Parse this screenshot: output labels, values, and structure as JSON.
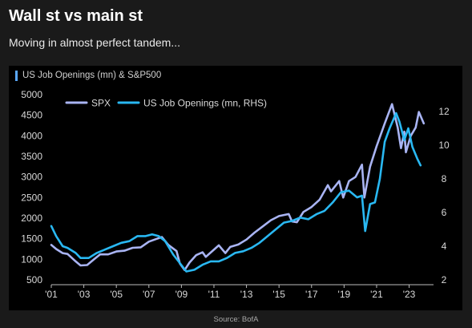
{
  "header": {
    "title": "Wall st vs main st",
    "subtitle": "Moving in almost perfect tandem..."
  },
  "source": "Source: BofA",
  "colors": {
    "spx": "#a9b4f3",
    "job_openings": "#29b8f2",
    "accent_bar": "#5aa8ff"
  },
  "chart_data": {
    "type": "line",
    "title": "US Job Openings (mn) & S&P500",
    "legend": {
      "placement": "top-left",
      "entries": [
        "SPX",
        "US Job Openings (mn, RHS)"
      ]
    },
    "x_ticks": [
      "'01",
      "'03",
      "'05",
      "'07",
      "'09",
      "'11",
      "'13",
      "'15",
      "'17",
      "'19",
      "'21",
      "'23"
    ],
    "x_tick_values": [
      2001,
      2003,
      2005,
      2007,
      2009,
      2011,
      2013,
      2015,
      2017,
      2019,
      2021,
      2023
    ],
    "xlim": [
      2001,
      2024.5
    ],
    "ylim_left": [
      500,
      5000
    ],
    "y_ticks_left": [
      500,
      1000,
      1500,
      2000,
      2500,
      3000,
      3500,
      4000,
      4500,
      5000
    ],
    "ylim_right": [
      2,
      13
    ],
    "y_ticks_right": [
      2,
      4,
      6,
      8,
      10,
      12
    ],
    "grid": false,
    "series": [
      {
        "name": "SPX",
        "axis": "left",
        "points": [
          [
            2001.0,
            1350
          ],
          [
            2001.3,
            1250
          ],
          [
            2001.7,
            1150
          ],
          [
            2002.0,
            1130
          ],
          [
            2002.5,
            950
          ],
          [
            2002.8,
            850
          ],
          [
            2003.2,
            860
          ],
          [
            2003.6,
            990
          ],
          [
            2004.0,
            1120
          ],
          [
            2004.5,
            1120
          ],
          [
            2005.0,
            1190
          ],
          [
            2005.5,
            1210
          ],
          [
            2006.0,
            1280
          ],
          [
            2006.5,
            1290
          ],
          [
            2007.0,
            1430
          ],
          [
            2007.5,
            1500
          ],
          [
            2007.8,
            1540
          ],
          [
            2008.2,
            1350
          ],
          [
            2008.7,
            1200
          ],
          [
            2008.9,
            900
          ],
          [
            2009.2,
            740
          ],
          [
            2009.5,
            920
          ],
          [
            2009.9,
            1100
          ],
          [
            2010.3,
            1170
          ],
          [
            2010.5,
            1060
          ],
          [
            2010.9,
            1200
          ],
          [
            2011.3,
            1340
          ],
          [
            2011.7,
            1150
          ],
          [
            2012.0,
            1300
          ],
          [
            2012.5,
            1360
          ],
          [
            2013.0,
            1480
          ],
          [
            2013.5,
            1650
          ],
          [
            2014.0,
            1800
          ],
          [
            2014.5,
            1950
          ],
          [
            2015.0,
            2050
          ],
          [
            2015.6,
            2100
          ],
          [
            2015.8,
            1920
          ],
          [
            2016.1,
            1900
          ],
          [
            2016.5,
            2150
          ],
          [
            2017.0,
            2270
          ],
          [
            2017.5,
            2450
          ],
          [
            2018.0,
            2800
          ],
          [
            2018.2,
            2650
          ],
          [
            2018.7,
            2900
          ],
          [
            2018.95,
            2500
          ],
          [
            2019.3,
            2900
          ],
          [
            2019.7,
            3000
          ],
          [
            2020.1,
            3300
          ],
          [
            2020.25,
            2500
          ],
          [
            2020.6,
            3250
          ],
          [
            2021.0,
            3750
          ],
          [
            2021.5,
            4300
          ],
          [
            2021.95,
            4770
          ],
          [
            2022.3,
            4200
          ],
          [
            2022.5,
            3700
          ],
          [
            2022.7,
            4100
          ],
          [
            2022.8,
            3600
          ],
          [
            2023.1,
            4000
          ],
          [
            2023.4,
            4200
          ],
          [
            2023.6,
            4580
          ],
          [
            2023.9,
            4300
          ]
        ]
      },
      {
        "name": "US Job Openings (mn, RHS)",
        "axis": "right",
        "points": [
          [
            2001.0,
            5.2
          ],
          [
            2001.3,
            4.6
          ],
          [
            2001.7,
            4.0
          ],
          [
            2002.0,
            3.9
          ],
          [
            2002.5,
            3.6
          ],
          [
            2002.8,
            3.3
          ],
          [
            2003.3,
            3.3
          ],
          [
            2003.8,
            3.6
          ],
          [
            2004.3,
            3.8
          ],
          [
            2004.8,
            4.0
          ],
          [
            2005.3,
            4.2
          ],
          [
            2005.8,
            4.3
          ],
          [
            2006.3,
            4.6
          ],
          [
            2006.8,
            4.6
          ],
          [
            2007.2,
            4.7
          ],
          [
            2007.6,
            4.6
          ],
          [
            2008.0,
            4.3
          ],
          [
            2008.5,
            3.5
          ],
          [
            2008.9,
            3.0
          ],
          [
            2009.3,
            2.5
          ],
          [
            2009.8,
            2.6
          ],
          [
            2010.3,
            2.9
          ],
          [
            2010.8,
            3.1
          ],
          [
            2011.3,
            3.1
          ],
          [
            2011.8,
            3.3
          ],
          [
            2012.3,
            3.6
          ],
          [
            2012.8,
            3.7
          ],
          [
            2013.3,
            3.9
          ],
          [
            2013.8,
            4.2
          ],
          [
            2014.3,
            4.6
          ],
          [
            2014.8,
            5.0
          ],
          [
            2015.3,
            5.4
          ],
          [
            2015.8,
            5.5
          ],
          [
            2016.3,
            5.7
          ],
          [
            2016.8,
            5.6
          ],
          [
            2017.3,
            5.9
          ],
          [
            2017.8,
            6.1
          ],
          [
            2018.3,
            6.6
          ],
          [
            2018.8,
            7.2
          ],
          [
            2019.3,
            7.3
          ],
          [
            2019.8,
            6.9
          ],
          [
            2020.1,
            7.0
          ],
          [
            2020.3,
            4.9
          ],
          [
            2020.6,
            6.5
          ],
          [
            2020.9,
            6.6
          ],
          [
            2021.2,
            8.0
          ],
          [
            2021.5,
            10.2
          ],
          [
            2021.8,
            11.0
          ],
          [
            2022.2,
            11.9
          ],
          [
            2022.4,
            11.4
          ],
          [
            2022.7,
            10.3
          ],
          [
            2022.95,
            11.0
          ],
          [
            2023.2,
            9.9
          ],
          [
            2023.5,
            9.2
          ],
          [
            2023.7,
            8.8
          ]
        ]
      }
    ]
  }
}
